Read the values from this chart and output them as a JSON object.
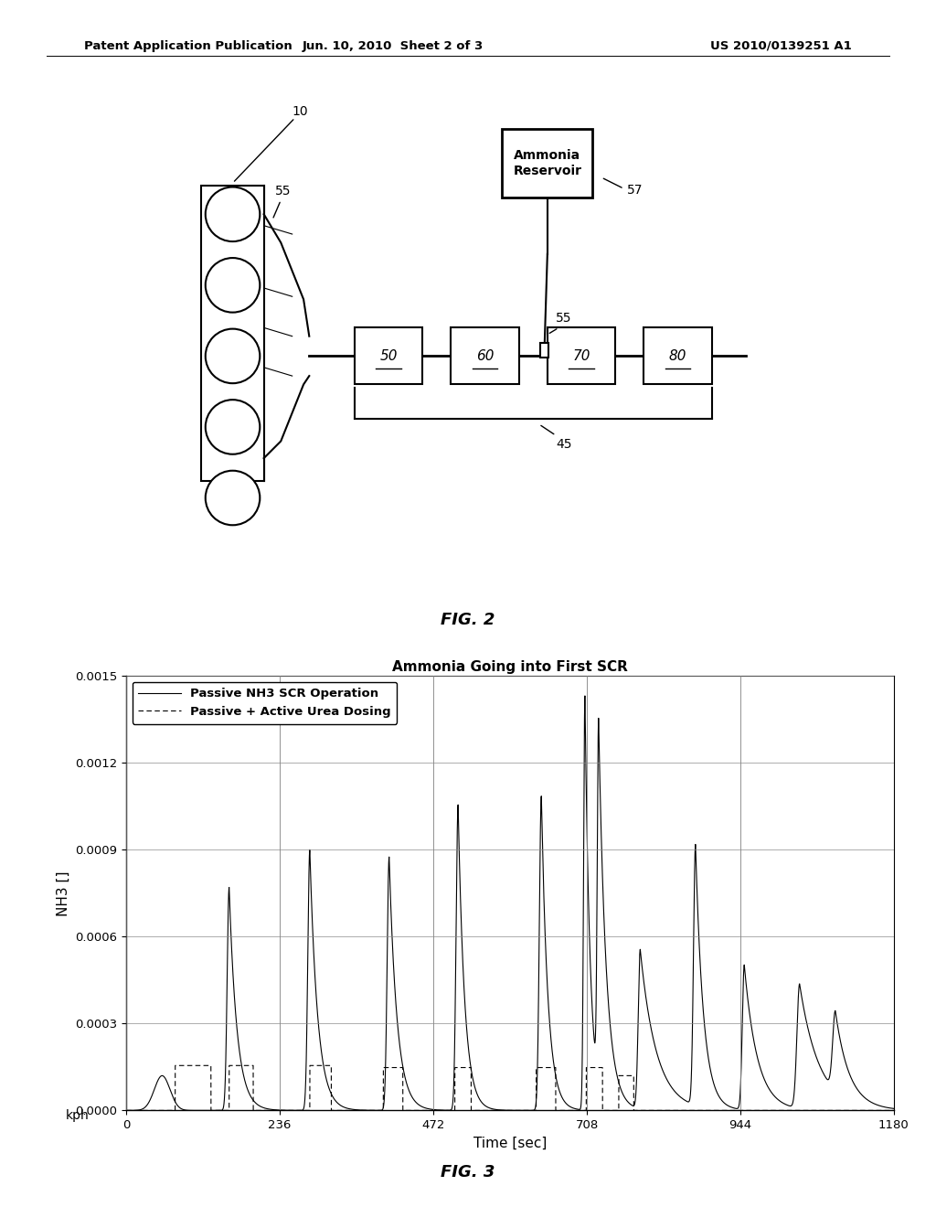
{
  "header_left": "Patent Application Publication",
  "header_mid": "Jun. 10, 2010  Sheet 2 of 3",
  "header_right": "US 2010/0139251 A1",
  "fig2_label": "FIG. 2",
  "fig3_label": "FIG. 3",
  "plot_title": "Ammonia Going into First SCR",
  "xlabel": "Time [sec]",
  "ylabel": "NH3 []",
  "extra_label": "kph",
  "xlim": [
    0,
    1180
  ],
  "ylim": [
    0.0,
    0.0015
  ],
  "yticks": [
    0.0,
    0.0003,
    0.0006,
    0.0009,
    0.0012,
    0.0015
  ],
  "xticks": [
    0,
    236,
    472,
    708,
    944,
    1180
  ],
  "legend_solid": "Passive NH3 SCR Operation",
  "legend_dashed": "Passive + Active Urea Dosing",
  "background_color": "#ffffff"
}
